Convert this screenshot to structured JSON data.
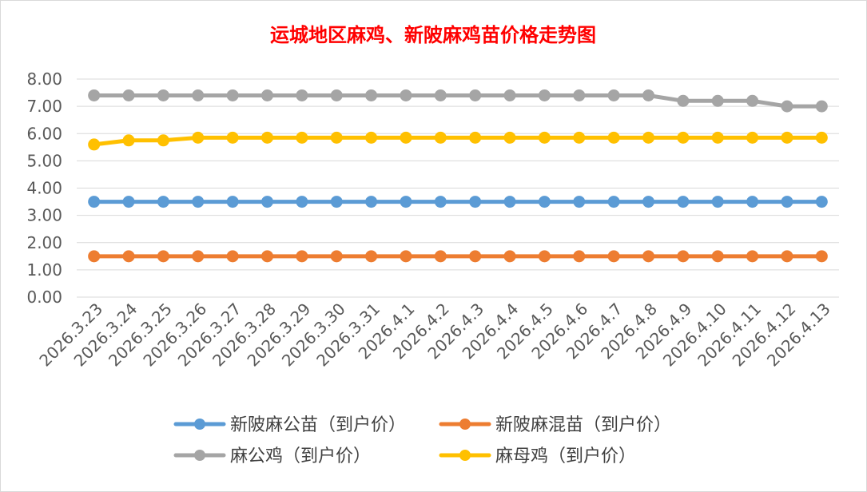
{
  "chart_data": {
    "type": "line",
    "title": "运城地区麻鸡、新陂麻鸡苗价格走势图",
    "xlabel": "",
    "ylabel": "",
    "ylim": [
      0,
      8
    ],
    "yticks": [
      "0.00",
      "1.00",
      "2.00",
      "3.00",
      "4.00",
      "5.00",
      "6.00",
      "7.00",
      "8.00"
    ],
    "grid": true,
    "legend_position": "bottom",
    "categories": [
      "2026.3.23",
      "2026.3.24",
      "2026.3.25",
      "2026.3.26",
      "2026.3.27",
      "2026.3.28",
      "2026.3.29",
      "2026.3.30",
      "2026.3.31",
      "2026.4.1",
      "2026.4.2",
      "2026.4.3",
      "2026.4.4",
      "2026.4.5",
      "2026.4.6",
      "2026.4.7",
      "2026.4.8",
      "2026.4.9",
      "2026.4.10",
      "2026.4.11",
      "2026.4.12",
      "2026.4.13"
    ],
    "series": [
      {
        "name": "新陂麻公苗（到户价）",
        "color": "#5B9BD5",
        "values": [
          3.5,
          3.5,
          3.5,
          3.5,
          3.5,
          3.5,
          3.5,
          3.5,
          3.5,
          3.5,
          3.5,
          3.5,
          3.5,
          3.5,
          3.5,
          3.5,
          3.5,
          3.5,
          3.5,
          3.5,
          3.5,
          3.5
        ]
      },
      {
        "name": "新陂麻混苗（到户价）",
        "color": "#ED7D31",
        "values": [
          1.5,
          1.5,
          1.5,
          1.5,
          1.5,
          1.5,
          1.5,
          1.5,
          1.5,
          1.5,
          1.5,
          1.5,
          1.5,
          1.5,
          1.5,
          1.5,
          1.5,
          1.5,
          1.5,
          1.5,
          1.5,
          1.5
        ]
      },
      {
        "name": "麻公鸡（到户价）",
        "color": "#A5A5A5",
        "values": [
          7.4,
          7.4,
          7.4,
          7.4,
          7.4,
          7.4,
          7.4,
          7.4,
          7.4,
          7.4,
          7.4,
          7.4,
          7.4,
          7.4,
          7.4,
          7.4,
          7.4,
          7.2,
          7.2,
          7.2,
          7.0,
          7.0
        ]
      },
      {
        "name": "麻母鸡（到户价）",
        "color": "#FFC000",
        "values": [
          5.6,
          5.75,
          5.75,
          5.85,
          5.85,
          5.85,
          5.85,
          5.85,
          5.85,
          5.85,
          5.85,
          5.85,
          5.85,
          5.85,
          5.85,
          5.85,
          5.85,
          5.85,
          5.85,
          5.85,
          5.85,
          5.85
        ]
      }
    ]
  }
}
